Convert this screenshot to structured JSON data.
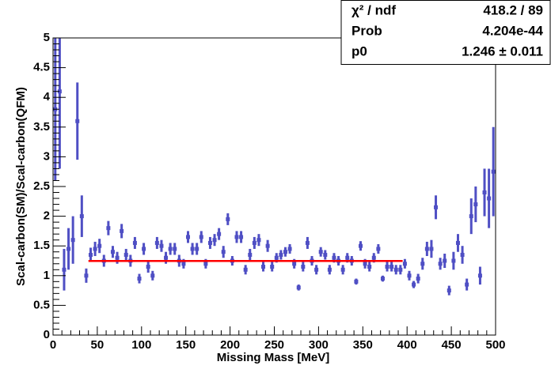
{
  "chart_data": {
    "type": "scatter",
    "xlabel": "Missing Mass [MeV]",
    "ylabel": "Scal-carbon(SM)/Scal-carbon(QFM)",
    "xlim": [
      0,
      500
    ],
    "ylim": [
      0,
      5
    ],
    "xticks": [
      0,
      50,
      100,
      150,
      200,
      250,
      300,
      350,
      400,
      450,
      500
    ],
    "yticks": [
      0,
      0.5,
      1,
      1.5,
      2,
      2.5,
      3,
      3.5,
      4,
      4.5,
      5
    ],
    "color": "#4f4fc4",
    "x": [
      2.5,
      7.5,
      12.5,
      17.5,
      22.5,
      27.5,
      32.5,
      37.5,
      42.5,
      47.5,
      52.5,
      57.5,
      62.5,
      67.5,
      72.5,
      77.5,
      82.5,
      87.5,
      92.5,
      97.5,
      102.5,
      107.5,
      112.5,
      117.5,
      122.5,
      127.5,
      132.5,
      137.5,
      142.5,
      147.5,
      152.5,
      157.5,
      162.5,
      167.5,
      172.5,
      177.5,
      182.5,
      187.5,
      192.5,
      197.5,
      202.5,
      207.5,
      212.5,
      217.5,
      222.5,
      227.5,
      232.5,
      237.5,
      242.5,
      247.5,
      252.5,
      257.5,
      262.5,
      267.5,
      272.5,
      277.5,
      282.5,
      287.5,
      292.5,
      297.5,
      302.5,
      307.5,
      312.5,
      317.5,
      322.5,
      327.5,
      332.5,
      337.5,
      342.5,
      347.5,
      352.5,
      357.5,
      362.5,
      367.5,
      372.5,
      377.5,
      382.5,
      387.5,
      392.5,
      397.5,
      402.5,
      407.5,
      412.5,
      417.5,
      422.5,
      427.5,
      432.5,
      437.5,
      442.5,
      447.5,
      452.5,
      457.5,
      462.5,
      467.5,
      472.5,
      477.5,
      482.5,
      487.5,
      492.5,
      497.5
    ],
    "values": [
      3.8,
      4.1,
      1.1,
      1.45,
      1.6,
      3.6,
      2.0,
      1.0,
      1.35,
      1.45,
      1.5,
      1.25,
      1.8,
      1.4,
      1.3,
      1.75,
      1.35,
      1.25,
      1.55,
      0.95,
      1.45,
      1.15,
      1.0,
      1.55,
      1.5,
      1.3,
      1.45,
      1.45,
      1.25,
      1.2,
      1.65,
      1.45,
      1.45,
      1.65,
      1.2,
      1.55,
      1.6,
      1.7,
      1.4,
      1.95,
      1.25,
      1.65,
      1.65,
      1.1,
      1.35,
      1.55,
      1.6,
      1.15,
      1.5,
      1.15,
      1.3,
      1.35,
      1.4,
      1.45,
      1.2,
      0.8,
      1.15,
      1.55,
      1.25,
      1.1,
      1.4,
      1.35,
      1.1,
      1.3,
      1.25,
      1.1,
      1.3,
      1.25,
      0.9,
      1.5,
      1.2,
      1.15,
      1.3,
      1.45,
      0.95,
      1.15,
      1.15,
      1.1,
      1.1,
      1.2,
      1.0,
      0.85,
      0.95,
      1.2,
      1.45,
      1.45,
      2.15,
      1.2,
      1.25,
      0.75,
      1.25,
      1.55,
      1.35,
      0.85,
      2.0,
      2.2,
      1.0,
      2.4,
      2.3,
      2.75
    ],
    "errors": [
      1.2,
      1.3,
      0.35,
      0.35,
      0.4,
      0.65,
      0.35,
      0.12,
      0.12,
      0.12,
      0.12,
      0.1,
      0.12,
      0.1,
      0.1,
      0.12,
      0.1,
      0.1,
      0.1,
      0.08,
      0.1,
      0.1,
      0.08,
      0.1,
      0.1,
      0.1,
      0.1,
      0.1,
      0.1,
      0.08,
      0.1,
      0.1,
      0.1,
      0.1,
      0.08,
      0.1,
      0.1,
      0.1,
      0.1,
      0.1,
      0.08,
      0.1,
      0.1,
      0.08,
      0.1,
      0.1,
      0.1,
      0.08,
      0.1,
      0.08,
      0.08,
      0.08,
      0.08,
      0.08,
      0.08,
      0.05,
      0.08,
      0.1,
      0.08,
      0.08,
      0.08,
      0.08,
      0.08,
      0.08,
      0.08,
      0.08,
      0.08,
      0.08,
      0.05,
      0.08,
      0.08,
      0.08,
      0.08,
      0.08,
      0.05,
      0.08,
      0.08,
      0.08,
      0.08,
      0.08,
      0.08,
      0.06,
      0.08,
      0.1,
      0.12,
      0.15,
      0.2,
      0.1,
      0.12,
      0.08,
      0.15,
      0.15,
      0.15,
      0.1,
      0.3,
      0.3,
      0.15,
      0.4,
      0.5,
      0.75
    ],
    "fit": {
      "value": 1.246,
      "x": [
        40,
        395
      ],
      "color": "#ff0000"
    },
    "stats": [
      {
        "label": "χ² / ndf",
        "value": "418.2 / 89"
      },
      {
        "label": "Prob",
        "value": "4.204e-44"
      },
      {
        "label": "p0",
        "value": "1.246 ± 0.011"
      }
    ]
  }
}
